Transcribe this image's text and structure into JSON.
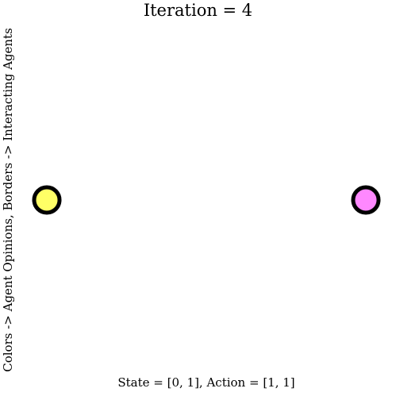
{
  "title": "Iteration = 4",
  "ylabel": "Colors -> Agent Opinions, Borders -> Interacting Agents",
  "xlabel": "State = [0, 1], Action = [1, 1]",
  "agents": [
    {
      "name": "agent-0",
      "fill": "#ffff66",
      "border": "#000000"
    },
    {
      "name": "agent-1",
      "fill": "#ff88ff",
      "border": "#000000"
    }
  ]
}
